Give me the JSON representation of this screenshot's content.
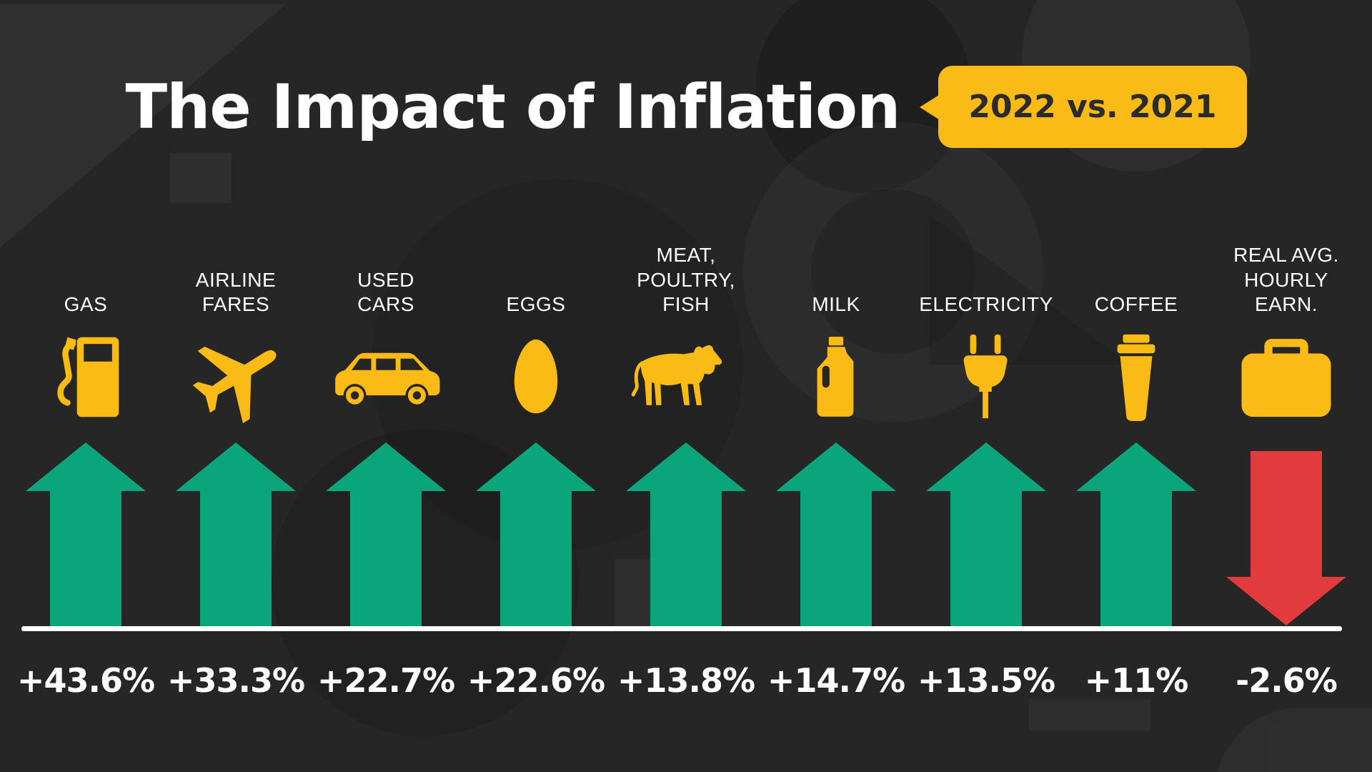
{
  "title": "The Impact of Inflation",
  "badge": "2022 vs. 2021",
  "colors": {
    "background": "#262626",
    "yellow": "#FBBB17",
    "green": "#0AA57A",
    "red": "#E23B3D",
    "text": "#FFFFFF",
    "badge_text": "#2B2B2B"
  },
  "chart_data": {
    "type": "bar",
    "title": "The Impact of Inflation",
    "comparison": "2022 vs. 2021",
    "unit": "percent change, 2022 vs. 2021",
    "categories": [
      "GAS",
      "AIRLINE FARES",
      "USED CARS",
      "EGGS",
      "MEAT, POULTRY, FISH",
      "MILK",
      "ELECTRICITY",
      "COFFEE",
      "REAL AVG. HOURLY EARN."
    ],
    "values": [
      43.6,
      33.3,
      22.7,
      22.6,
      13.8,
      14.7,
      13.5,
      11,
      -2.6
    ],
    "value_labels": [
      "+43.6%",
      "+33.3%",
      "+22.7%",
      "+22.6%",
      "+13.8%",
      "+14.7%",
      "+13.5%",
      "+11%",
      "-2.6%"
    ],
    "columns": [
      {
        "label_lines": [
          "GAS"
        ],
        "icon": "gas-pump-icon",
        "value": 43.6,
        "value_label": "+43.6%",
        "direction": "up"
      },
      {
        "label_lines": [
          "AIRLINE",
          "FARES"
        ],
        "icon": "airplane-icon",
        "value": 33.3,
        "value_label": "+33.3%",
        "direction": "up"
      },
      {
        "label_lines": [
          "USED",
          "CARS"
        ],
        "icon": "car-icon",
        "value": 22.7,
        "value_label": "+22.7%",
        "direction": "up"
      },
      {
        "label_lines": [
          "EGGS"
        ],
        "icon": "egg-icon",
        "value": 22.6,
        "value_label": "+22.6%",
        "direction": "up"
      },
      {
        "label_lines": [
          "MEAT,",
          "POULTRY,",
          "FISH"
        ],
        "icon": "cow-icon",
        "value": 13.8,
        "value_label": "+13.8%",
        "direction": "up"
      },
      {
        "label_lines": [
          "MILK"
        ],
        "icon": "milk-jug-icon",
        "value": 14.7,
        "value_label": "+14.7%",
        "direction": "up"
      },
      {
        "label_lines": [
          "ELECTRICITY"
        ],
        "icon": "plug-icon",
        "value": 13.5,
        "value_label": "+13.5%",
        "direction": "up"
      },
      {
        "label_lines": [
          "COFFEE"
        ],
        "icon": "coffee-cup-icon",
        "value": 11,
        "value_label": "+11%",
        "direction": "up"
      },
      {
        "label_lines": [
          "REAL AVG.",
          "HOURLY",
          "EARN."
        ],
        "icon": "briefcase-icon",
        "value": -2.6,
        "value_label": "-2.6%",
        "direction": "down"
      }
    ]
  }
}
